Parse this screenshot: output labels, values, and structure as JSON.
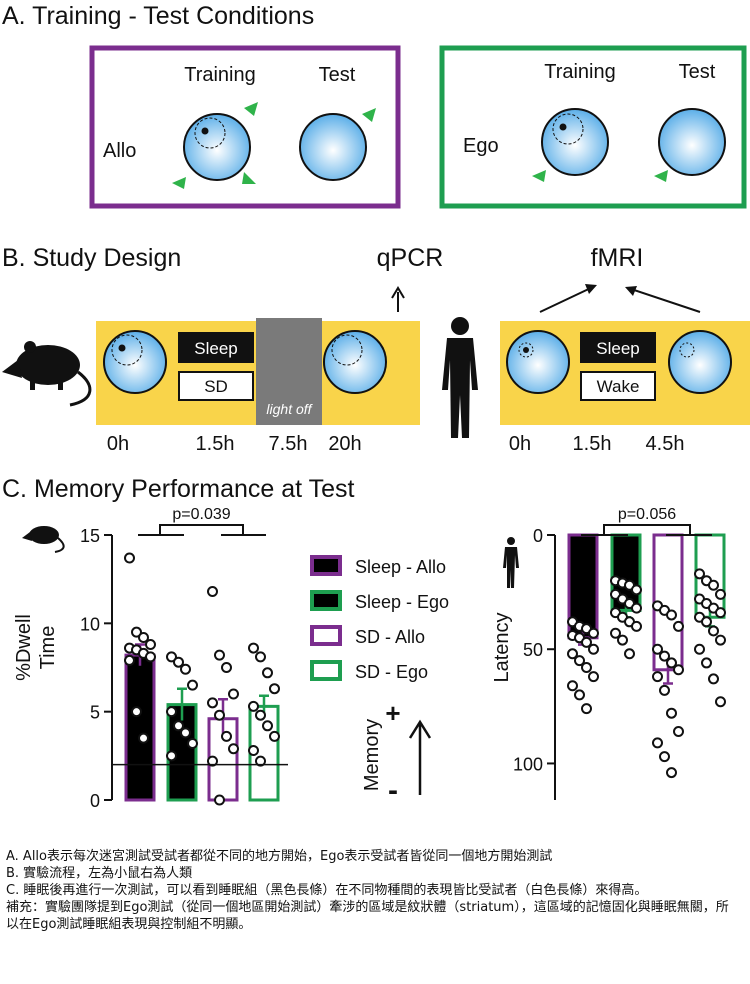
{
  "panel_a": {
    "title": "A. Training - Test Conditions",
    "allo": {
      "label": "Allo",
      "training": "Training",
      "test": "Test"
    },
    "ego": {
      "label": "Ego",
      "training": "Training",
      "test": "Test"
    }
  },
  "panel_b": {
    "title": "B. Study Design",
    "qpcr": "qPCR",
    "fmri": "fMRI",
    "rodent": {
      "sleep": "Sleep",
      "sd": "SD",
      "light_off": "light off",
      "times": [
        "0h",
        "1.5h",
        "7.5h",
        "20h"
      ]
    },
    "human": {
      "sleep": "Sleep",
      "wake": "Wake",
      "times": [
        "0h",
        "1.5h",
        "4.5h"
      ]
    }
  },
  "panel_c": {
    "title": "C. Memory Performance at Test",
    "memory_label": "Memory",
    "plus": "+",
    "minus": "-"
  },
  "chart_data": [
    {
      "type": "bar",
      "ylabel": [
        "%Dwell",
        "Time"
      ],
      "ylim": [
        0,
        15
      ],
      "yticks": [
        0,
        5,
        10,
        15
      ],
      "reference_line": 2,
      "annotation": "p=0.039",
      "series": [
        {
          "name": "Sleep - Allo",
          "color": "#7b2d8e",
          "fill": "#000000",
          "values": [
            8.2
          ],
          "errors": [
            0.6
          ],
          "points": [
            13.7,
            9.5,
            9.2,
            8.8,
            8.6,
            8.5,
            8.3,
            8.1,
            7.9,
            5,
            3.5
          ]
        },
        {
          "name": "Sleep - Ego",
          "color": "#1e9e50",
          "fill": "#000000",
          "values": [
            5.4
          ],
          "errors": [
            0.9
          ],
          "points": [
            8.1,
            7.8,
            7.4,
            6.5,
            5,
            4.2,
            3.8,
            3.2,
            2.5
          ]
        },
        {
          "name": "SD - Allo",
          "color": "#7b2d8e",
          "fill": "#ffffff",
          "values": [
            4.6
          ],
          "errors": [
            1.1
          ],
          "points": [
            11.8,
            8.2,
            7.5,
            6,
            5.5,
            4.8,
            3.6,
            2.9,
            2.2,
            0
          ]
        },
        {
          "name": "SD - Ego",
          "color": "#1e9e50",
          "fill": "#ffffff",
          "values": [
            5.3
          ],
          "errors": [
            0.6
          ],
          "points": [
            8.6,
            8.1,
            7.2,
            6.3,
            5.3,
            4.8,
            4.2,
            3.6,
            2.8,
            2.2
          ]
        }
      ]
    },
    {
      "type": "bar",
      "ylabel": [
        "Latency"
      ],
      "ylim": [
        0,
        116
      ],
      "yticks": [
        0,
        50,
        100
      ],
      "inverted": true,
      "annotation": "p=0.056",
      "series": [
        {
          "color": "#7b2d8e",
          "fill": "#000000",
          "values": [
            45
          ],
          "errors": [
            3
          ],
          "points": [
            38,
            40,
            41,
            43,
            44,
            45,
            47,
            50,
            52,
            55,
            58,
            62,
            66,
            70,
            76
          ]
        },
        {
          "color": "#1e9e50",
          "fill": "#000000",
          "values": [
            33
          ],
          "errors": [
            3
          ],
          "points": [
            20,
            21,
            22,
            24,
            26,
            28,
            30,
            32,
            34,
            36,
            38,
            40,
            43,
            46,
            52
          ]
        },
        {
          "color": "#7b2d8e",
          "fill": "#ffffff",
          "values": [
            59
          ],
          "errors": [
            6
          ],
          "points": [
            31,
            33,
            35,
            40,
            50,
            53,
            56,
            59,
            62,
            68,
            78,
            86,
            91,
            97,
            104
          ]
        },
        {
          "color": "#1e9e50",
          "fill": "#ffffff",
          "values": [
            36
          ],
          "errors": [
            4
          ],
          "points": [
            17,
            20,
            22,
            26,
            28,
            30,
            32,
            34,
            36,
            38,
            42,
            46,
            50,
            56,
            63,
            73
          ]
        }
      ]
    }
  ],
  "notes": [
    "A. Allo表示每次迷宮測試受試者都從不同的地方開始，Ego表示受試者皆從同一個地方開始測試",
    "B. 實驗流程，左為小鼠右為人類",
    "C. 睡眠後再進行一次測試，可以看到睡眠組（黑色長條）在不同物種間的表現皆比受試者（白色長條）來得高。",
    "補充：實驗團隊提到Ego測試（從同一個地區開始測試）牽涉的區域是紋狀體（striatum），這區域的記憶固化與睡眠無關，所以在Ego測試睡眠組表現與控制組不明顯。"
  ]
}
